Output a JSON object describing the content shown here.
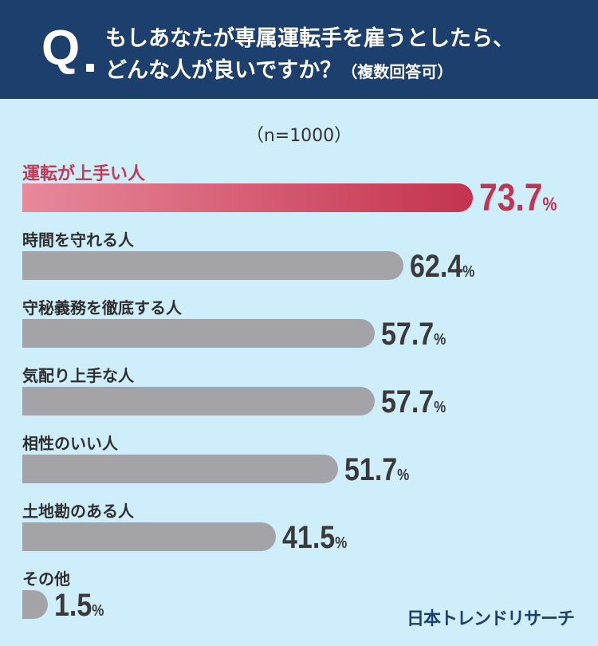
{
  "header": {
    "q_mark": "Q",
    "question_line1": "もしあなたが専属運転手を雇うとしたら、",
    "question_line2": "どんな人が良いですか？",
    "question_note": "（複数回答可）"
  },
  "sample_note": "（n=1000）",
  "colors": {
    "header_bg": "#1c3f6e",
    "background": "#cfeefb",
    "highlight": "#c4334f",
    "bar_gray": "#a4a4a8"
  },
  "chart_data": {
    "type": "bar",
    "orientation": "horizontal",
    "unit": "%",
    "xlim": [
      0,
      100
    ],
    "grid": false,
    "categories": [
      "運転が上手い人",
      "時間を守れる人",
      "守秘義務を徹底する人",
      "気配り上手な人",
      "相性のいい人",
      "土地勘のある人",
      "その他"
    ],
    "values": [
      73.7,
      62.4,
      57.7,
      57.7,
      51.7,
      41.5,
      1.5
    ],
    "highlight_index": 0
  },
  "brand": "日本トレンドリサーチ"
}
